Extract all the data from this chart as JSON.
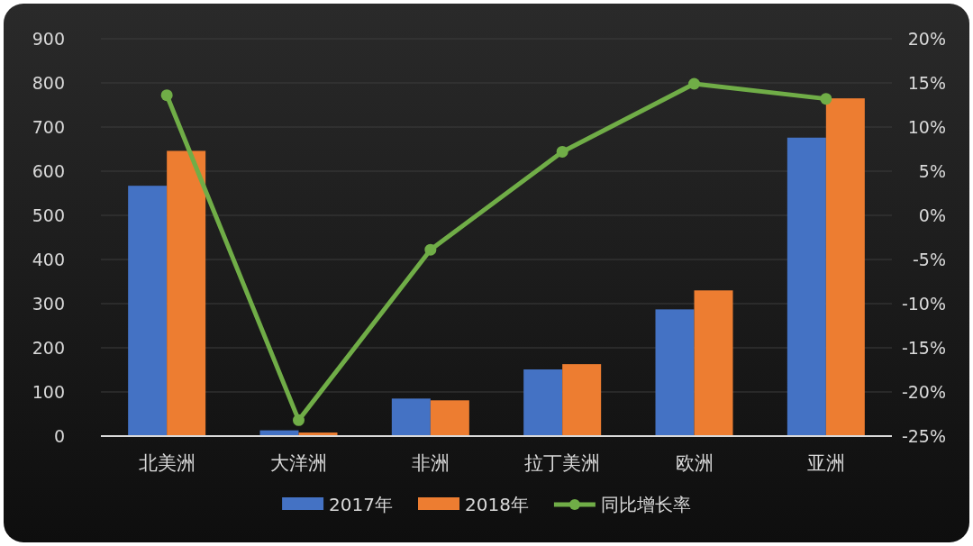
{
  "chart_data": {
    "type": "bar",
    "categories": [
      "北美洲",
      "大洋洲",
      "非洲",
      "拉丁美洲",
      "欧洲",
      "亚洲"
    ],
    "series": [
      {
        "name": "2017年",
        "color": "#4472c4",
        "values": [
          567,
          13,
          85,
          151,
          287,
          676
        ]
      },
      {
        "name": "2018年",
        "color": "#ed7d31",
        "values": [
          646,
          8,
          81,
          163,
          330,
          765
        ]
      },
      {
        "name": "同比增长率",
        "type": "line",
        "axis": "y2",
        "color": "#70ad47",
        "marker": "circle",
        "values": [
          13.6,
          -23.2,
          -3.9,
          7.2,
          14.9,
          13.2
        ]
      }
    ],
    "ylim": [
      0,
      900
    ],
    "yticks": [
      0,
      100,
      200,
      300,
      400,
      500,
      600,
      700,
      800,
      900
    ],
    "y2lim": [
      -25,
      20
    ],
    "y2ticks": [
      {
        "value": -25,
        "label": "-25%"
      },
      {
        "value": -20,
        "label": "-20%"
      },
      {
        "value": -15,
        "label": "-15%"
      },
      {
        "value": -10,
        "label": "-10%"
      },
      {
        "value": -5,
        "label": "-5%"
      },
      {
        "value": 0,
        "label": "0%"
      },
      {
        "value": 5,
        "label": "5%"
      },
      {
        "value": 10,
        "label": "10%"
      },
      {
        "value": 15,
        "label": "15%"
      },
      {
        "value": 20,
        "label": "20%"
      }
    ],
    "grid": "y",
    "legend": "bottom"
  }
}
